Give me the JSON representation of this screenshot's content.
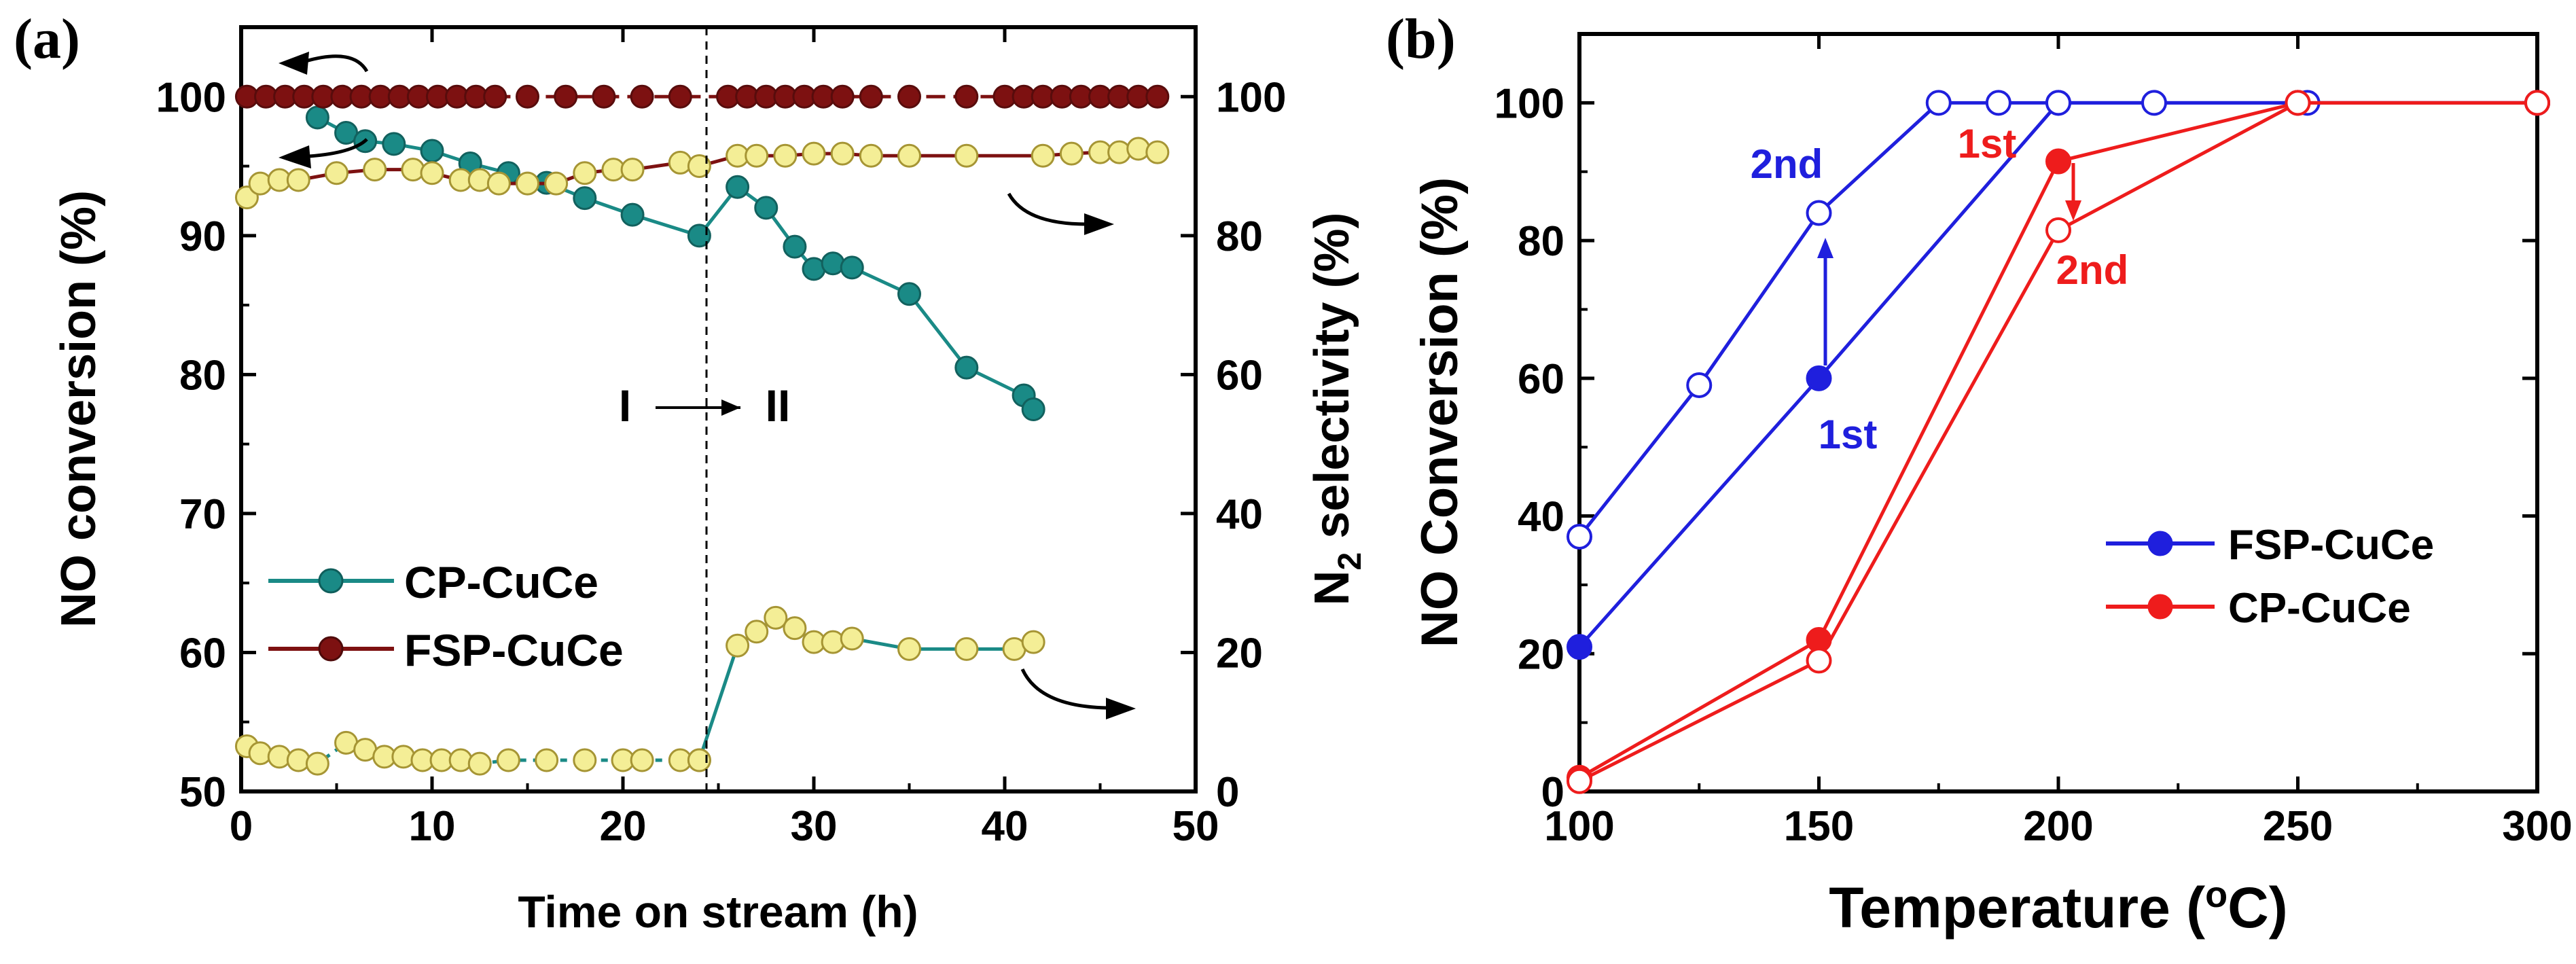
{
  "chart_data": [
    {
      "type": "line",
      "panel": "(a)",
      "xlabel": "Time on stream (h)",
      "ylabel": "NO conversion (%)",
      "y2label_main": "N",
      "y2label_sub": "2",
      "y2label_rest": " selectivity (%)",
      "xlim": [
        0,
        50
      ],
      "ylim": [
        50,
        105
      ],
      "y2lim": [
        0,
        110
      ],
      "xticks": [
        "0",
        "10",
        "20",
        "30",
        "40",
        "50"
      ],
      "yticks": [
        "50",
        "60",
        "70",
        "80",
        "90",
        "100"
      ],
      "y2ticks": [
        "0",
        "20",
        "40",
        "60",
        "80",
        "100"
      ],
      "legend_position": "bottom-left",
      "annotation": "I",
      "annotation2": "II",
      "switch_time": 25,
      "series": [
        {
          "name": "CP-CuCe",
          "axis": "left",
          "color": "#1a8a86",
          "x": [
            4,
            5.5,
            6.5,
            8,
            10,
            12,
            14,
            16,
            18,
            20.5,
            24,
            26,
            27.5,
            29,
            30,
            31,
            32,
            35,
            38,
            41,
            41.5
          ],
          "y": [
            98.5,
            97.4,
            96.8,
            96.6,
            96.1,
            95.2,
            94.5,
            93.8,
            92.7,
            91.5,
            90.0,
            93.5,
            92.0,
            89.2,
            87.6,
            88.0,
            87.7,
            85.8,
            80.5,
            78.5,
            77.5
          ]
        },
        {
          "name": "FSP-CuCe",
          "axis": "right",
          "color": "#7d1111",
          "x": [
            0.3,
            1.3,
            2.3,
            3.3,
            4.3,
            5.3,
            6.3,
            7.3,
            8.3,
            9.3,
            10.3,
            11.3,
            12.3,
            13.3,
            15,
            17,
            19,
            21,
            23,
            25.5,
            26.5,
            27.5,
            28.5,
            29.5,
            30.5,
            31.5,
            33,
            35,
            38,
            40,
            41,
            42,
            43,
            44,
            45,
            46,
            47,
            48
          ],
          "y": [
            100,
            100,
            100,
            100,
            100,
            100,
            100,
            100,
            100,
            100,
            100,
            100,
            100,
            100,
            100,
            100,
            100,
            100,
            100,
            100,
            100,
            100,
            100,
            100,
            100,
            100,
            100,
            100,
            100,
            100,
            100,
            100,
            100,
            100,
            100,
            100,
            100,
            100
          ]
        },
        {
          "name": "CP-CuCe N2 selectivity",
          "axis": "right",
          "color": "#d4c04a",
          "x": [
            0.3,
            1,
            2,
            3,
            4,
            5.5,
            6.5,
            7.5,
            8.5,
            9.5,
            10.5,
            11.5,
            12.5,
            14,
            16,
            18,
            20,
            21,
            23,
            24
          ],
          "y": [
            6.5,
            5.5,
            5.0,
            4.5,
            4.0,
            7.0,
            6.0,
            5.0,
            5.0,
            4.5,
            4.5,
            4.5,
            4.0,
            4.5,
            4.5,
            4.5,
            4.5,
            4.5,
            4.5,
            4.5
          ]
        },
        {
          "name": "CP-CuCe N2 selectivity II",
          "axis": "right",
          "color": "#d4c04a",
          "x": [
            24,
            26,
            27,
            28,
            29,
            30,
            31,
            32,
            35,
            38,
            40.5,
            41.5
          ],
          "y": [
            4.5,
            21.0,
            23.0,
            25.0,
            23.5,
            21.5,
            21.5,
            22.0,
            20.5,
            20.5,
            20.5,
            21.5
          ]
        },
        {
          "name": "FSP-CuCe N2 selectivity",
          "axis": "right",
          "color": "#d4c04a",
          "x": [
            0.3,
            1,
            2,
            3,
            5,
            7,
            9,
            10,
            11.5,
            12.5,
            13.5,
            15,
            16.5,
            18,
            19.5,
            20.5,
            23,
            24,
            26,
            27,
            28.5,
            30,
            31.5,
            33,
            35,
            38,
            42,
            43.5,
            45,
            46,
            47,
            48
          ],
          "y": [
            85.5,
            87.5,
            88,
            88,
            89,
            89.5,
            89.5,
            89,
            88,
            88,
            87.5,
            87.5,
            87.5,
            89,
            89.5,
            89.5,
            90.5,
            90,
            91.5,
            91.5,
            91.5,
            91.8,
            91.8,
            91.5,
            91.5,
            91.5,
            91.5,
            91.8,
            92,
            92,
            92.5,
            92
          ]
        }
      ],
      "legend": [
        "CP-CuCe",
        "FSP-CuCe"
      ]
    },
    {
      "type": "line",
      "panel": "(b)",
      "xlabel_main": "Temperature (",
      "xlabel_sup": "o",
      "xlabel_rest": "C)",
      "ylabel": "NO Conversion (%)",
      "xlim": [
        100,
        300
      ],
      "ylim": [
        0,
        110
      ],
      "xticks": [
        "100",
        "150",
        "200",
        "250",
        "300"
      ],
      "yticks": [
        "0",
        "20",
        "40",
        "60",
        "80",
        "100"
      ],
      "legend_position": "right-middle",
      "legend": [
        "FSP-CuCe",
        "CP-CuCe"
      ],
      "annotations": {
        "fsp_2nd": "2nd",
        "fsp_1st": "1st",
        "cp_1st": "1st",
        "cp_2nd": "2nd"
      },
      "series": [
        {
          "name": "FSP-CuCe 1st",
          "color": "#1f1fdd",
          "filled": true,
          "x": [
            100,
            150,
            200,
            250,
            300
          ],
          "y": [
            21,
            60,
            100,
            100,
            100
          ]
        },
        {
          "name": "FSP-CuCe 2nd",
          "color": "#1f1fdd",
          "filled": false,
          "x": [
            100,
            125,
            150,
            175,
            187.5,
            200,
            220,
            252,
            300
          ],
          "y": [
            37,
            59,
            84,
            100,
            100,
            100,
            100,
            100,
            100
          ]
        },
        {
          "name": "CP-CuCe 1st",
          "color": "#ee1c1c",
          "filled": true,
          "x": [
            100,
            150,
            200,
            250,
            300
          ],
          "y": [
            2,
            22,
            91.5,
            100,
            100
          ]
        },
        {
          "name": "CP-CuCe 2nd",
          "color": "#ee1c1c",
          "filled": false,
          "x": [
            100,
            150,
            200,
            250,
            300
          ],
          "y": [
            1.5,
            19,
            81.5,
            100,
            100
          ]
        }
      ]
    }
  ]
}
